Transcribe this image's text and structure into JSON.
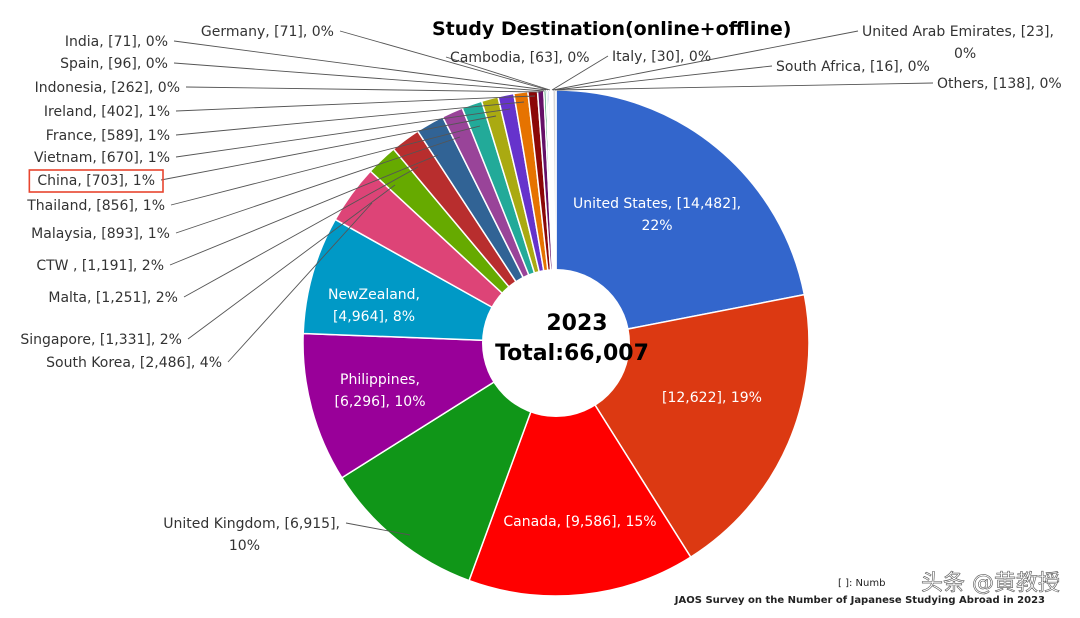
{
  "chart_data": {
    "type": "pie",
    "title": "Study Destination(online+offline)",
    "center_year": "2023",
    "center_total": "Total:66,007",
    "source": "JAOS Survey on the Number of Japanese Studying Abroad in 2023",
    "note": "[ ]: Numb",
    "watermark": "头条 @黄教授",
    "slices": [
      {
        "name": "United States",
        "value": 14482,
        "label": [
          "United States, [14,482],",
          "22%"
        ],
        "color": "#3366cc"
      },
      {
        "name": "",
        "value": 12622,
        "label": [
          "[12,622], 19%"
        ],
        "color": "#dc3912"
      },
      {
        "name": "Canada",
        "value": 9586,
        "label": [
          "Canada, [9,586], 15%"
        ],
        "color": "#ff0000"
      },
      {
        "name": "",
        "value": 6915,
        "label": [],
        "color": "#109618"
      },
      {
        "name": "Philippines",
        "value": 6296,
        "label": [
          "Philippines,",
          "[6,296], 10%"
        ],
        "color": "#990099"
      },
      {
        "name": "NewZealand",
        "value": 4964,
        "label": [
          "NewZealand,",
          "[4,964], 8%"
        ],
        "color": "#0099c6"
      },
      {
        "name": "",
        "value": 2486,
        "label": [],
        "color": "#dd4477"
      },
      {
        "name": "",
        "value": 1331,
        "label": [],
        "color": "#66aa00"
      },
      {
        "name": "",
        "value": 1251,
        "label": [],
        "color": "#b82e2e"
      },
      {
        "name": "",
        "value": 1191,
        "label": [],
        "color": "#316395"
      },
      {
        "name": "",
        "value": 893,
        "label": [],
        "color": "#994499"
      },
      {
        "name": "",
        "value": 856,
        "label": [],
        "color": "#22aa99"
      },
      {
        "name": "",
        "value": 703,
        "label": [],
        "color": "#aaaa11"
      },
      {
        "name": "",
        "value": 670,
        "label": [],
        "color": "#6633cc"
      },
      {
        "name": "",
        "value": 589,
        "label": [],
        "color": "#e67300"
      },
      {
        "name": "",
        "value": 402,
        "label": [],
        "color": "#8b0707"
      },
      {
        "name": "",
        "value": 262,
        "label": [],
        "color": "#651067"
      },
      {
        "name": "",
        "value": 96,
        "label": [],
        "color": "#329262"
      },
      {
        "name": "",
        "value": 71,
        "label": [],
        "color": "#5574a6"
      },
      {
        "name": "",
        "value": 71,
        "label": [],
        "color": "#3b3eac"
      },
      {
        "name": "",
        "value": 63,
        "label": [],
        "color": "#b77322"
      },
      {
        "name": "",
        "value": 30,
        "label": [],
        "color": "#16d620"
      },
      {
        "name": "",
        "value": 23,
        "label": [],
        "color": "#b91383"
      },
      {
        "name": "",
        "value": 16,
        "label": [],
        "color": "#f4359e"
      },
      {
        "name": "",
        "value": 138,
        "label": [],
        "color": "#d9d9d9"
      }
    ],
    "outside_labels": [
      {
        "text": [
          "United Kingdom, [6,915],",
          "10%"
        ],
        "highlight": false
      },
      {
        "text": [
          "South Korea, [2,486], 4%"
        ],
        "highlight": false
      },
      {
        "text": [
          "Singapore, [1,331], 2%"
        ],
        "highlight": false
      },
      {
        "text": [
          "Malta, [1,251], 2%"
        ],
        "highlight": false
      },
      {
        "text": [
          "CTW , [1,191], 2%"
        ],
        "highlight": false
      },
      {
        "text": [
          "Malaysia, [893], 1%"
        ],
        "highlight": false
      },
      {
        "text": [
          "Thailand, [856], 1%"
        ],
        "highlight": false
      },
      {
        "text": [
          "China, [703], 1%"
        ],
        "highlight": true
      },
      {
        "text": [
          "Vietnam, [670], 1%"
        ],
        "highlight": false
      },
      {
        "text": [
          "France, [589], 1%"
        ],
        "highlight": false
      },
      {
        "text": [
          "Ireland, [402], 1%"
        ],
        "highlight": false
      },
      {
        "text": [
          "Indonesia, [262], 0%"
        ],
        "highlight": false
      },
      {
        "text": [
          "Spain, [96], 0%"
        ],
        "highlight": false
      },
      {
        "text": [
          "India, [71], 0%"
        ],
        "highlight": false
      },
      {
        "text": [
          "Germany, [71], 0%"
        ],
        "highlight": false
      },
      {
        "text": [
          "Cambodia, [63], 0%"
        ],
        "highlight": false
      },
      {
        "text": [
          "Italy, [30], 0%"
        ],
        "highlight": false
      },
      {
        "text": [
          "United Arab Emirates, [23],",
          "0%"
        ],
        "highlight": false
      },
      {
        "text": [
          "South Africa, [16], 0%"
        ],
        "highlight": false
      },
      {
        "text": [
          "Others, [138], 0%"
        ],
        "highlight": false
      }
    ]
  }
}
